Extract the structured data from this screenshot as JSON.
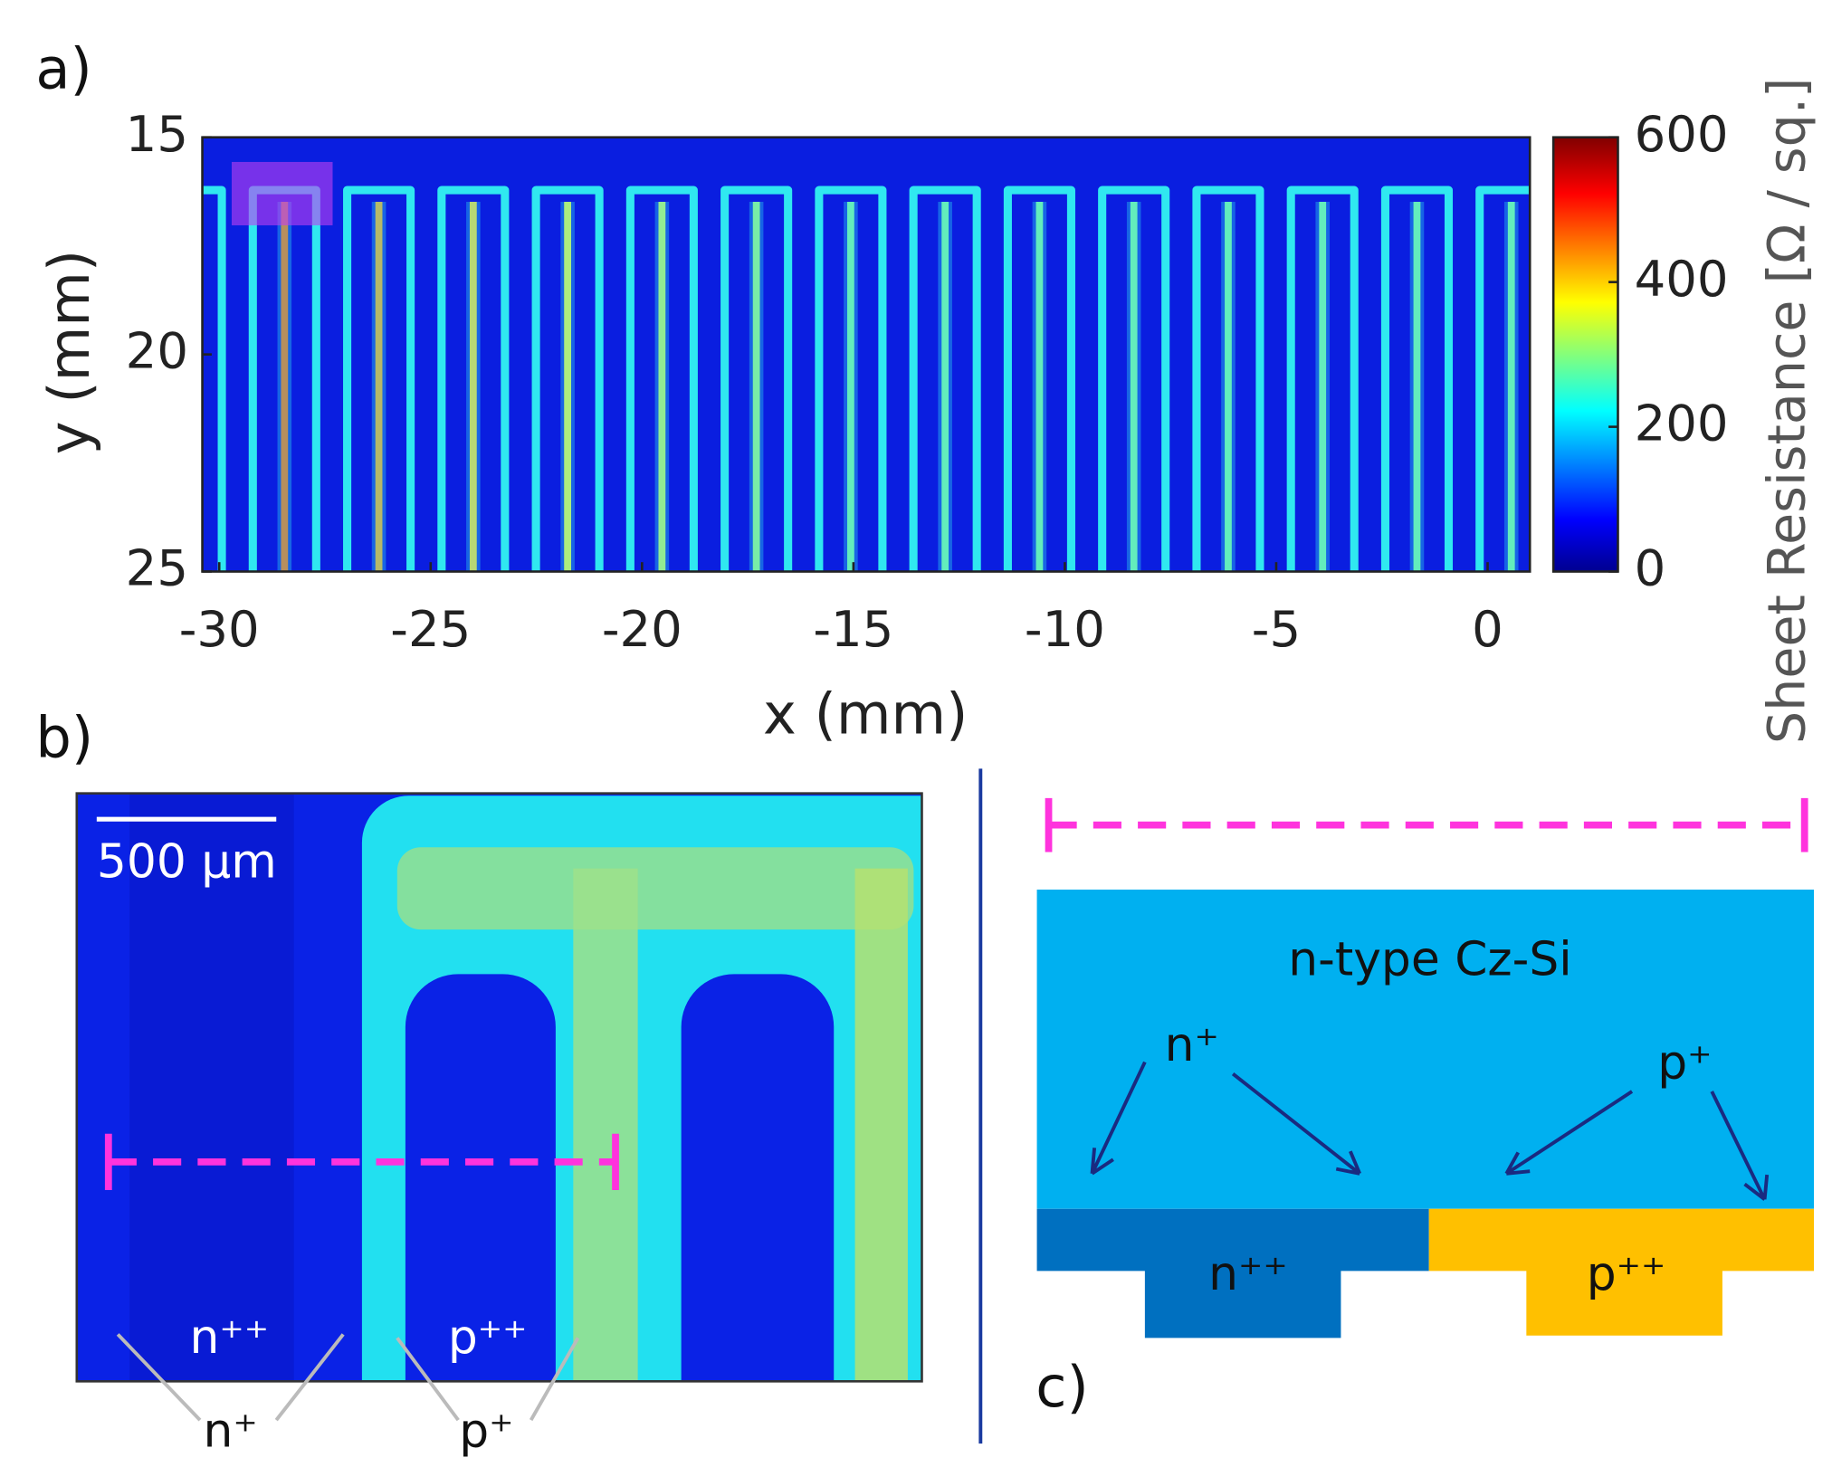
{
  "chart_data": {
    "type": "heatmap",
    "panel_label": "a)",
    "xlabel": "x (mm)",
    "ylabel": "y (mm)",
    "xlim": [
      -30.4,
      1
    ],
    "ylim": [
      15,
      25
    ],
    "y_inverted": true,
    "xticks": [
      -30,
      -25,
      -20,
      -15,
      -10,
      -5,
      0
    ],
    "yticks": [
      15,
      20,
      25
    ],
    "colorbar": {
      "label": "Sheet Resistance [Ω / sq.]",
      "lim": [
        0,
        600
      ],
      "ticks": [
        0,
        200,
        400,
        600
      ]
    }
  },
  "panel_b": {
    "label": "b)",
    "scalebar": "500 µm",
    "region_n": "n⁺⁺",
    "region_p": "p⁺⁺",
    "edge_n": "n⁺",
    "edge_p": "p⁺"
  },
  "panel_c": {
    "label": "c)",
    "substrate": "n-type Cz-Si",
    "n_plus": "n⁺",
    "p_plus": "p⁺",
    "n_plusplus": "n⁺⁺",
    "p_plusplus": "p⁺⁺"
  }
}
